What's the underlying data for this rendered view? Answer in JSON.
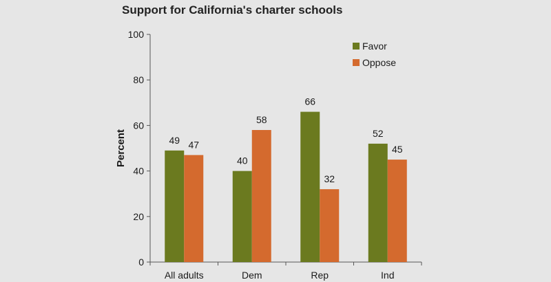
{
  "chart_data": {
    "type": "bar",
    "title": "Support for California's charter schools",
    "xlabel": "",
    "ylabel": "Percent",
    "ylim": [
      0,
      100
    ],
    "yticks": [
      0,
      20,
      40,
      60,
      80,
      100
    ],
    "categories": [
      "All adults",
      "Dem",
      "Rep",
      "Ind"
    ],
    "series": [
      {
        "name": "Favor",
        "values": [
          49,
          40,
          66,
          52
        ],
        "color": "#6b7a1f"
      },
      {
        "name": "Oppose",
        "values": [
          47,
          58,
          32,
          45
        ],
        "color": "#d46a2e"
      }
    ],
    "grid": false,
    "legend": "top-right",
    "data_labels": true
  }
}
